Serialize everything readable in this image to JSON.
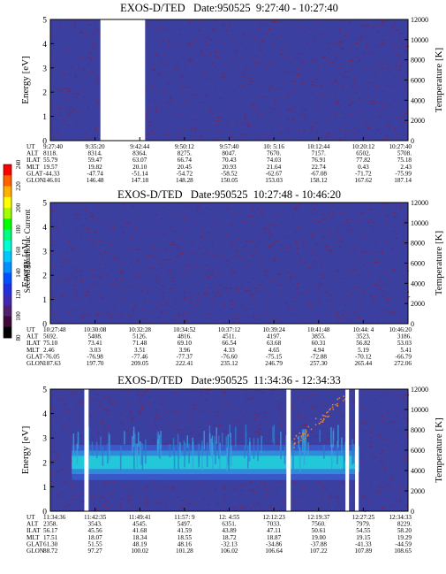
{
  "colors": {
    "background_field": "#3a3fa0",
    "speckle": "#8a2040",
    "gap": "#ffffff",
    "band_core": "#22c8d8",
    "band_edge": "#2f8ad8"
  },
  "colorbar": {
    "label": "Second Harmonic Current",
    "ticks": [
      "240",
      "220",
      "200",
      "180",
      "160",
      "140",
      "120",
      "100",
      "80"
    ],
    "colors": [
      "#ff0000",
      "#ff6000",
      "#ffb000",
      "#ffff00",
      "#a0ff00",
      "#00ff00",
      "#00ff80",
      "#00ffd0",
      "#00c8ff",
      "#0090ff",
      "#0050ff",
      "#2030e0",
      "#4028b0",
      "#502070",
      "#400838",
      "#000000"
    ]
  },
  "chart_data": [
    {
      "type": "heatmap",
      "title": "EXOS-D/TED   Date:950525  9:27:40 - 10:27:40",
      "ylabel": "Energy [eV]",
      "ylabel_right": "Temperature [K]",
      "ylim": [
        0,
        5
      ],
      "ylim_right": [
        0,
        12000
      ],
      "yticks": [
        "0",
        "1",
        "2",
        "3",
        "4",
        "5"
      ],
      "yticks_right": [
        "0",
        "2000",
        "4000",
        "6000",
        "8000",
        "10000",
        "12000"
      ],
      "data_gaps": [
        [
          0.14,
          0.265
        ]
      ],
      "band": null,
      "ephemeris": {
        "labels": [
          "UT",
          "ALT",
          "ILAT",
          "MLT",
          "GLAT",
          "GLON"
        ],
        "columns": [
          [
            "9:27:40",
            "8118.",
            "55.79",
            "19.57",
            "-44.33",
            "146.01"
          ],
          [
            "9:35:20",
            "8314.",
            "59.47",
            "19.82",
            "-47.74",
            "146.48"
          ],
          [
            "9:42:44",
            "8364.",
            "63.07",
            "20.10",
            "-51.14",
            "147.18"
          ],
          [
            "9:50:12",
            "8275.",
            "66.74",
            "20.45",
            "-54.72",
            "148.28"
          ],
          [
            "9:57:40",
            "8047.",
            "70.43",
            "20.93",
            "-58.52",
            "150.05"
          ],
          [
            "10: 5:16",
            "7670.",
            "74.03",
            "21.64",
            "-62.67",
            "153.03"
          ],
          [
            "10:12:44",
            "7157.",
            "76.91",
            "22.74",
            "-67.08",
            "158.12"
          ],
          [
            "10:20:12",
            "6502.",
            "77.82",
            "0.43",
            "-71.72",
            "167.62"
          ],
          [
            "10:27:40",
            "5708.",
            "75.18",
            "2.43",
            "-75.99",
            "187.14"
          ]
        ]
      }
    },
    {
      "type": "heatmap",
      "title": "EXOS-D/TED   Date:950525  10:27:48 - 10:46:20",
      "ylabel": "Energy [eV]",
      "ylabel_right": "Temperature [K]",
      "ylim": [
        0,
        5
      ],
      "ylim_right": [
        0,
        12000
      ],
      "yticks": [
        "0",
        "1",
        "2",
        "3",
        "4",
        "5"
      ],
      "yticks_right": [
        "0",
        "2000",
        "4000",
        "6000",
        "8000",
        "10000",
        "12000"
      ],
      "data_gaps": [],
      "band": null,
      "ephemeris": {
        "labels": [
          "UT",
          "ALT",
          "ILAT",
          "MLT",
          "GLAT",
          "GLON"
        ],
        "columns": [
          [
            "10:27:48",
            "5692.",
            "75.10",
            "2.46",
            "-76.05",
            "187.63"
          ],
          [
            "10:30:08",
            "5408.",
            "73.41",
            "3.03",
            "-76.98",
            "197.70"
          ],
          [
            "10:32:28",
            "5126.",
            "71.48",
            "3.51",
            "-77.46",
            "209.05"
          ],
          [
            "10:34:52",
            "4816.",
            "69.10",
            "3.96",
            "-77.37",
            "222.41"
          ],
          [
            "10:37:12",
            "4511.",
            "66.54",
            "4.33",
            "-76.60",
            "235.12"
          ],
          [
            "10:39:24",
            "4197.",
            "63.68",
            "4.65",
            "-75.15",
            "246.79"
          ],
          [
            "10:41:48",
            "3855.",
            "60.31",
            "4.94",
            "-72.88",
            "257.30"
          ],
          [
            "10:44: 4",
            "3523.",
            "56.82",
            "5.19",
            "-70.12",
            "265.44"
          ],
          [
            "10:46:20",
            "3186.",
            "53.03",
            "5.41",
            "-66.79",
            "272.06"
          ]
        ]
      }
    },
    {
      "type": "heatmap",
      "title": "EXOS-D/TED   Date:950525  11:34:36 - 12:34:33",
      "ylabel": "Energy [eV]",
      "ylabel_right": "Temperature [K]",
      "ylim": [
        0,
        5
      ],
      "ylim_right": [
        0,
        12000
      ],
      "yticks": [
        "0",
        "1",
        "2",
        "3",
        "4",
        "5"
      ],
      "yticks_right": [
        "0",
        "2000",
        "4000",
        "6000",
        "8000",
        "10000",
        "12000"
      ],
      "data_gaps": [
        [
          0.095,
          0.107
        ],
        [
          0.66,
          0.672
        ],
        [
          0.825,
          0.835
        ],
        [
          0.852,
          0.862
        ]
      ],
      "band": {
        "center_eV": 2.0,
        "width_eV": 0.6,
        "x_range": [
          0.06,
          0.86
        ]
      },
      "ephemeris": {
        "labels": [
          "UT",
          "ALT",
          "ILAT",
          "MLT",
          "GLAT",
          "GLON"
        ],
        "columns": [
          [
            "11:34:36",
            "2358.",
            "56.17",
            "17.51",
            "61.30",
            "88.72"
          ],
          [
            "11:42:35",
            "3543.",
            "45.56",
            "18.07",
            "51.55",
            "97.27"
          ],
          [
            "11:49:41",
            "4545.",
            "41.68",
            "18.34",
            "48.19",
            "100.02"
          ],
          [
            "11:57: 9",
            "5497.",
            "41.59",
            "18.55",
            "48.16",
            "101.28"
          ],
          [
            "12: 4:55",
            "6351.",
            "43.89",
            "18.72",
            "-32.13",
            "106.02"
          ],
          [
            "12:12:23",
            "7033.",
            "47.11",
            "18.87",
            "-34.86",
            "106.64"
          ],
          [
            "12:19:37",
            "7560.",
            "50.61",
            "19.00",
            "-37.88",
            "107.22"
          ],
          [
            "12:27:25",
            "7979.",
            "54.55",
            "19.15",
            "-41.33",
            "107.89"
          ],
          [
            "12:34:33",
            "8229.",
            "58.20",
            "19.29",
            "-44.59",
            "108.65"
          ]
        ]
      }
    }
  ]
}
